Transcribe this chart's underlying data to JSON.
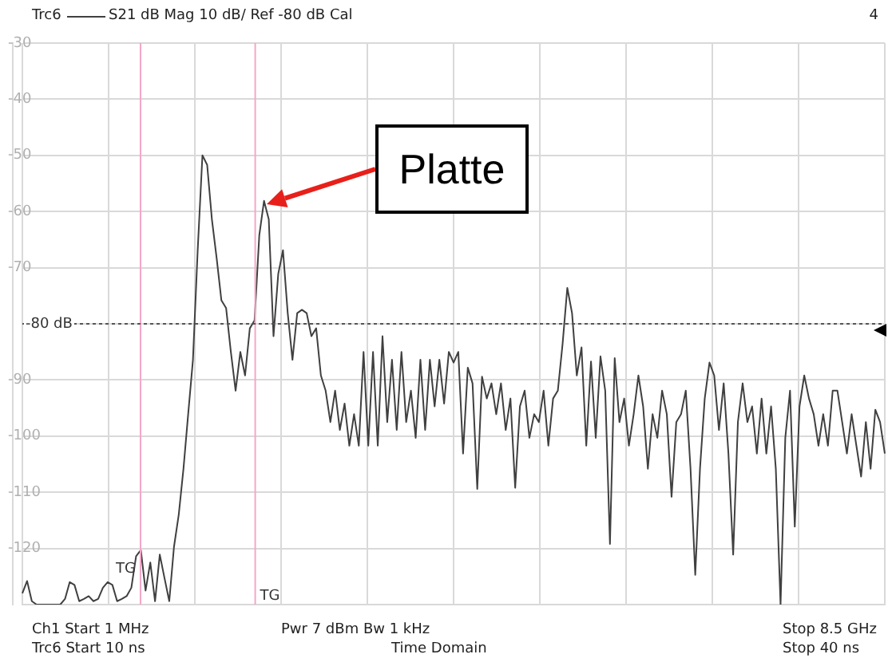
{
  "chart_data": {
    "type": "line",
    "annotations": [
      "S21  dB Mag  10 dB/ Ref -80 dB  Cal",
      "4",
      "Ch1  Start  1 MHz",
      "Pwr  7 dBm  Bw  1 kHz",
      "Stop  8.5 GHz",
      "Trc6  Start  10 ns",
      "Time  Domain",
      "Stop  40 ns",
      "Platte",
      "TG",
      "TG"
    ],
    "categories": [
      null,
      null,
      null,
      null,
      null,
      null,
      null,
      null,
      null,
      null,
      null,
      null,
      null,
      null,
      null,
      null,
      null,
      null,
      null,
      null,
      null,
      null,
      null,
      null,
      null,
      null,
      null,
      null,
      null,
      null,
      null,
      null,
      null,
      null,
      null,
      null,
      null,
      null,
      null,
      null,
      null,
      null,
      null,
      null,
      null,
      null,
      null,
      null,
      null,
      null,
      null,
      null,
      null,
      null,
      null,
      null,
      null,
      null,
      null,
      null,
      null,
      null,
      null,
      null,
      null,
      null,
      null,
      null,
      null,
      null,
      null,
      null,
      null,
      null,
      null,
      null,
      null,
      null,
      null,
      null,
      null,
      null,
      null,
      null,
      null,
      null,
      null,
      null,
      null,
      null,
      null,
      null,
      null,
      null,
      null,
      null,
      null,
      null,
      null,
      null,
      null,
      null,
      null,
      null,
      null,
      null,
      null,
      null,
      null,
      null,
      null,
      null,
      null,
      null,
      null,
      null,
      null,
      null,
      null,
      null,
      null,
      null,
      null,
      null,
      null,
      null,
      null,
      null,
      null,
      null,
      null,
      null,
      null,
      null,
      null,
      null,
      null,
      null,
      null,
      null,
      null,
      null,
      null,
      null,
      null,
      null,
      null,
      null,
      null,
      null,
      null,
      null,
      null,
      null,
      null,
      null,
      null,
      null,
      null,
      null,
      null,
      null,
      null,
      null,
      null,
      null,
      null,
      null,
      null,
      null,
      null,
      null,
      null,
      null,
      null,
      null,
      null,
      null,
      null,
      null,
      null,
      null,
      null
    ],
    "series": [
      {
        "name": "Trc6",
        "color": "#404040",
        "values": [
          -128,
          -125.8,
          -129.4,
          -130,
          -130,
          -130,
          -130,
          -130,
          -130,
          -129,
          -126,
          -126.5,
          -129.4,
          -129,
          -128.5,
          -129.4,
          -129,
          -127,
          -126,
          -126.5,
          -129.4,
          -129,
          -128.5,
          -127,
          -121.4,
          -120.3,
          -127.5,
          -122.5,
          -129.4,
          -121.1,
          -125.3,
          -129.4,
          -119.7,
          -114,
          -105.8,
          -96,
          -86.4,
          -66.9,
          -50,
          -51.7,
          -61.4,
          -68.3,
          -75.8,
          -77.2,
          -85,
          -91.9,
          -85,
          -89.2,
          -80.8,
          -79.4,
          -64.2,
          -58.1,
          -61.4,
          -82.2,
          -71.1,
          -66.9,
          -78.1,
          -86.4,
          -78.1,
          -77.5,
          -78.1,
          -82.2,
          -80.8,
          -89.2,
          -91.9,
          -97.5,
          -91.9,
          -98.9,
          -94.2,
          -101.7,
          -96.1,
          -101.7,
          -85,
          -101.7,
          -85,
          -101.7,
          -82.2,
          -97.5,
          -86.4,
          -98.9,
          -85,
          -97.5,
          -91.9,
          -100.3,
          -86.4,
          -98.9,
          -86.4,
          -94.7,
          -86.4,
          -94.2,
          -85,
          -86.9,
          -85,
          -103.1,
          -87.8,
          -90.6,
          -109.4,
          -89.4,
          -93.3,
          -90.6,
          -96.1,
          -90.6,
          -98.9,
          -93.3,
          -109.2,
          -94.7,
          -91.9,
          -100.3,
          -96.1,
          -97.5,
          -91.9,
          -101.7,
          -93.3,
          -91.9,
          -83.6,
          -73.6,
          -78.1,
          -89.2,
          -84.2,
          -101.7,
          -86.7,
          -100.3,
          -85.8,
          -91.9,
          -119.2,
          -86.1,
          -97.5,
          -93.3,
          -101.7,
          -96.1,
          -89.2,
          -94.7,
          -105.8,
          -96.1,
          -100.3,
          -91.9,
          -96.1,
          -110.8,
          -97.5,
          -96.1,
          -91.9,
          -105.8,
          -124.7,
          -105.8,
          -93.3,
          -86.9,
          -89.2,
          -98.9,
          -90.6,
          -103.1,
          -121.1,
          -97.5,
          -90.6,
          -97.5,
          -94.7,
          -103.1,
          -93.3,
          -103.1,
          -94.7,
          -105.8,
          -130,
          -100.3,
          -91.9,
          -116.1,
          -94.7,
          -89.2,
          -93.3,
          -96.1,
          -101.7,
          -96.1,
          -101.7,
          -91.9,
          -91.9,
          -97.5,
          -103.1,
          -96.1,
          -101.7,
          -107.2,
          -97.5,
          -105.8,
          -95.3,
          -97.5,
          -103.1
        ]
      }
    ],
    "ylim": [
      -130,
      -30
    ],
    "yticks": [
      -30,
      -40,
      -50,
      -60,
      -70,
      {
        "value": -80,
        "label": null
      },
      -90,
      -100,
      -110,
      -120,
      {
        "value": -130,
        "label": null
      }
    ],
    "tick_labels": "y",
    "ref_lines": [
      {
        "axis": "y",
        "value": -80,
        "label": "-80 dB",
        "color": "#555555",
        "line_style": "dotted"
      }
    ],
    "grid": true,
    "legend": "top left",
    "marker": "none",
    "line_style": "solid"
  }
}
